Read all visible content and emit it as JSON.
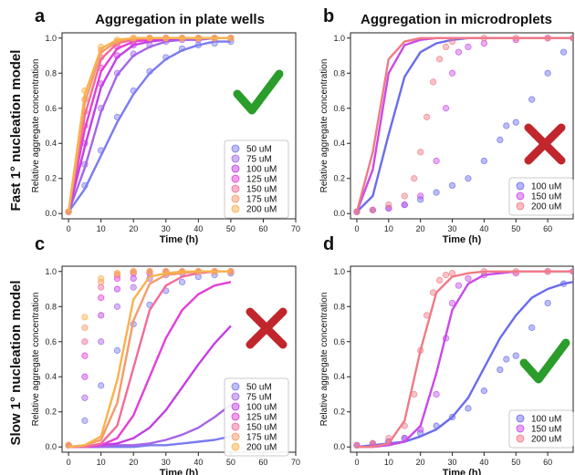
{
  "figure": {
    "column_titles": [
      "Aggregation in plate wells",
      "Aggregation in microdroplets"
    ],
    "row_titles": [
      "Fast 1° nucleation model",
      "Slow 1° nucleation model"
    ]
  },
  "colors": {
    "plate": [
      "#7b7bf0",
      "#a467e6",
      "#c23fe6",
      "#e43fd6",
      "#f26b9a",
      "#f59a6b",
      "#f8b24e"
    ],
    "droplet": [
      "#6b6bee",
      "#c94be8",
      "#f07a86"
    ],
    "check": "#2a9d2a",
    "cross": "#c0262c"
  },
  "chart_data": [
    {
      "type": "scatter",
      "panel_label": "a",
      "title": "Aggregation in plate wells",
      "xlabel": "Time (h)",
      "ylabel": "Relative aggregate concentration",
      "xlim": [
        -2,
        70
      ],
      "ylim": [
        -0.03,
        1.03
      ],
      "xticks": [
        0,
        10,
        20,
        30,
        40,
        50,
        60,
        70
      ],
      "yticks": [
        0.0,
        0.2,
        0.4,
        0.6,
        0.8,
        1.0
      ],
      "legend_position": "bottom-right",
      "verdict": "check",
      "series": [
        {
          "name": "50 uM",
          "data_x": [
            0,
            5,
            10,
            15,
            20,
            25,
            30,
            35,
            40,
            45,
            50
          ],
          "data_y": [
            0.01,
            0.16,
            0.36,
            0.55,
            0.7,
            0.81,
            0.89,
            0.94,
            0.96,
            0.97,
            0.98
          ],
          "fit_y": [
            0.01,
            0.14,
            0.33,
            0.52,
            0.68,
            0.8,
            0.88,
            0.93,
            0.96,
            0.98,
            0.98
          ]
        },
        {
          "name": "75 uM",
          "data_x": [
            0,
            5,
            10,
            15,
            20,
            25,
            30,
            35,
            40,
            45,
            50
          ],
          "data_y": [
            0.01,
            0.28,
            0.6,
            0.8,
            0.91,
            0.96,
            0.98,
            0.99,
            0.99,
            1.0,
            1.0
          ],
          "fit_y": [
            0.01,
            0.26,
            0.58,
            0.79,
            0.9,
            0.95,
            0.98,
            0.99,
            0.99,
            1.0,
            1.0
          ]
        },
        {
          "name": "100 uM",
          "data_x": [
            0,
            5,
            10,
            15,
            20,
            25,
            30,
            35,
            40,
            45,
            50
          ],
          "data_y": [
            0.01,
            0.4,
            0.74,
            0.9,
            0.96,
            0.99,
            1.0,
            1.0,
            1.0,
            1.0,
            1.0
          ],
          "fit_y": [
            0.01,
            0.38,
            0.72,
            0.89,
            0.96,
            0.98,
            0.99,
            1.0,
            1.0,
            1.0,
            1.0
          ]
        },
        {
          "name": "125 uM",
          "data_x": [
            0,
            5,
            10,
            15,
            20,
            25,
            30,
            35,
            40,
            45,
            50
          ],
          "data_y": [
            0.01,
            0.5,
            0.83,
            0.95,
            0.98,
            1.0,
            1.0,
            1.0,
            1.0,
            1.0,
            1.0
          ],
          "fit_y": [
            0.01,
            0.48,
            0.81,
            0.94,
            0.98,
            0.99,
            1.0,
            1.0,
            1.0,
            1.0,
            1.0
          ]
        },
        {
          "name": "150 uM",
          "data_x": [
            0,
            5,
            10,
            15,
            20,
            25,
            30,
            35,
            40,
            45,
            50
          ],
          "data_y": [
            0.01,
            0.58,
            0.89,
            0.97,
            0.99,
            1.0,
            1.0,
            1.0,
            1.0,
            1.0,
            1.0
          ],
          "fit_y": [
            0.01,
            0.56,
            0.88,
            0.97,
            0.99,
            1.0,
            1.0,
            1.0,
            1.0,
            1.0,
            1.0
          ]
        },
        {
          "name": "175 uM",
          "data_x": [
            0,
            5,
            10,
            15,
            20,
            25,
            30,
            35,
            40,
            45,
            50
          ],
          "data_y": [
            0.01,
            0.65,
            0.93,
            0.98,
            1.0,
            1.0,
            1.0,
            1.0,
            1.0,
            1.0,
            1.0
          ],
          "fit_y": [
            0.01,
            0.63,
            0.92,
            0.98,
            1.0,
            1.0,
            1.0,
            1.0,
            1.0,
            1.0,
            1.0
          ]
        },
        {
          "name": "200 uM",
          "data_x": [
            0,
            5,
            10,
            15,
            20,
            25,
            30,
            35,
            40,
            45,
            50
          ],
          "data_y": [
            0.01,
            0.7,
            0.95,
            0.99,
            1.0,
            1.0,
            1.0,
            1.0,
            1.0,
            1.0,
            1.0
          ],
          "fit_y": [
            0.01,
            0.68,
            0.94,
            0.99,
            1.0,
            1.0,
            1.0,
            1.0,
            1.0,
            1.0,
            1.0
          ]
        }
      ]
    },
    {
      "type": "scatter",
      "panel_label": "b",
      "title": "Aggregation in microdroplets",
      "xlabel": "Time (h)",
      "ylabel": "Relative aggregate concentration",
      "xlim": [
        -2,
        68
      ],
      "ylim": [
        -0.03,
        1.03
      ],
      "xticks": [
        0,
        10,
        20,
        30,
        40,
        50,
        60
      ],
      "yticks": [
        0.0,
        0.2,
        0.4,
        0.6,
        0.8,
        1.0
      ],
      "legend_position": "bottom-right",
      "verdict": "cross",
      "series": [
        {
          "name": "100 uM",
          "data_x": [
            0,
            5,
            10,
            15,
            20,
            25,
            30,
            35,
            40,
            45,
            47,
            50,
            55,
            60,
            65,
            68
          ],
          "data_y": [
            0.01,
            0.02,
            0.03,
            0.05,
            0.08,
            0.12,
            0.16,
            0.2,
            0.3,
            0.42,
            0.5,
            0.52,
            0.65,
            0.8,
            0.92,
            1.0
          ],
          "fit_x": [
            0,
            5,
            10,
            15,
            20,
            25,
            30,
            35,
            40,
            45,
            50,
            55,
            60,
            65,
            68
          ],
          "fit_y": [
            0.01,
            0.1,
            0.45,
            0.78,
            0.92,
            0.97,
            0.99,
            1.0,
            1.0,
            1.0,
            1.0,
            1.0,
            1.0,
            1.0,
            1.0
          ]
        },
        {
          "name": "150 uM",
          "data_x": [
            0,
            5,
            10,
            15,
            20,
            25,
            28,
            30,
            32,
            35,
            40,
            50,
            60,
            68
          ],
          "data_y": [
            0.01,
            0.02,
            0.03,
            0.05,
            0.1,
            0.3,
            0.6,
            0.8,
            0.92,
            0.95,
            0.97,
            0.99,
            1.0,
            1.0
          ],
          "fit_x": [
            0,
            5,
            10,
            15,
            20,
            25,
            30,
            35,
            40,
            45,
            50,
            55,
            60,
            65,
            68
          ],
          "fit_y": [
            0.01,
            0.25,
            0.8,
            0.96,
            0.99,
            1.0,
            1.0,
            1.0,
            1.0,
            1.0,
            1.0,
            1.0,
            1.0,
            1.0,
            1.0
          ]
        },
        {
          "name": "200 uM",
          "data_x": [
            0,
            5,
            10,
            15,
            18,
            20,
            22,
            24,
            26,
            28,
            30,
            40,
            50,
            60,
            68
          ],
          "data_y": [
            0.01,
            0.02,
            0.05,
            0.1,
            0.2,
            0.35,
            0.55,
            0.75,
            0.88,
            0.95,
            0.98,
            1.0,
            1.0,
            1.0,
            1.0
          ],
          "fit_x": [
            0,
            5,
            10,
            15,
            20,
            25,
            30,
            35,
            40,
            45,
            50,
            55,
            60,
            65,
            68
          ],
          "fit_y": [
            0.01,
            0.35,
            0.88,
            0.98,
            1.0,
            1.0,
            1.0,
            1.0,
            1.0,
            1.0,
            1.0,
            1.0,
            1.0,
            1.0,
            1.0
          ]
        }
      ]
    },
    {
      "type": "scatter",
      "panel_label": "c",
      "title": "",
      "xlabel": "Time (h)",
      "ylabel": "Relative aggregate concentration",
      "xlim": [
        -2,
        70
      ],
      "ylim": [
        -0.03,
        1.03
      ],
      "xticks": [
        0,
        10,
        20,
        30,
        40,
        50,
        60,
        70
      ],
      "yticks": [
        0.0,
        0.2,
        0.4,
        0.6,
        0.8,
        1.0
      ],
      "legend_position": "bottom-right",
      "verdict": "cross",
      "series": [
        {
          "name": "50 uM",
          "data_x": [
            0,
            5,
            10,
            15,
            20,
            25,
            30,
            35,
            40,
            45,
            50
          ],
          "data_y": [
            0.01,
            0.15,
            0.35,
            0.55,
            0.7,
            0.81,
            0.89,
            0.94,
            0.97,
            0.98,
            0.99
          ],
          "fit_y": [
            0.0,
            0.0,
            0.0,
            0.0,
            0.0,
            0.01,
            0.01,
            0.02,
            0.03,
            0.04,
            0.06
          ]
        },
        {
          "name": "75 uM",
          "data_x": [
            0,
            5,
            10,
            15,
            20,
            25,
            30,
            35,
            40,
            45,
            50
          ],
          "data_y": [
            0.01,
            0.28,
            0.6,
            0.8,
            0.91,
            0.96,
            0.98,
            0.99,
            1.0,
            1.0,
            1.0
          ],
          "fit_y": [
            0.0,
            0.0,
            0.0,
            0.01,
            0.01,
            0.02,
            0.04,
            0.07,
            0.11,
            0.17,
            0.24
          ]
        },
        {
          "name": "100 uM",
          "data_x": [
            0,
            5,
            10,
            15,
            20,
            25,
            30,
            35,
            40,
            45,
            50
          ],
          "data_y": [
            0.01,
            0.4,
            0.75,
            0.9,
            0.96,
            0.99,
            1.0,
            1.0,
            1.0,
            1.0,
            1.0
          ],
          "fit_y": [
            0.0,
            0.0,
            0.01,
            0.02,
            0.05,
            0.11,
            0.21,
            0.34,
            0.47,
            0.59,
            0.69
          ]
        },
        {
          "name": "125 uM",
          "data_x": [
            0,
            5,
            10,
            15,
            20,
            25,
            30,
            35,
            40,
            45,
            50
          ],
          "data_y": [
            0.01,
            0.52,
            0.85,
            0.96,
            0.99,
            1.0,
            1.0,
            1.0,
            1.0,
            1.0,
            1.0
          ],
          "fit_y": [
            0.0,
            0.0,
            0.01,
            0.05,
            0.18,
            0.4,
            0.62,
            0.78,
            0.87,
            0.92,
            0.94
          ]
        },
        {
          "name": "150 uM",
          "data_x": [
            0,
            5,
            10,
            15,
            20,
            25,
            30,
            35,
            40,
            45,
            50
          ],
          "data_y": [
            0.01,
            0.6,
            0.91,
            0.98,
            1.0,
            1.0,
            1.0,
            1.0,
            1.0,
            1.0,
            1.0
          ],
          "fit_y": [
            0.0,
            0.0,
            0.02,
            0.12,
            0.45,
            0.78,
            0.92,
            0.97,
            0.99,
            1.0,
            1.0
          ]
        },
        {
          "name": "175 uM",
          "data_x": [
            0,
            5,
            10,
            15,
            20,
            25,
            30,
            35,
            40,
            45,
            50
          ],
          "data_y": [
            0.01,
            0.68,
            0.94,
            0.99,
            1.0,
            1.0,
            1.0,
            1.0,
            1.0,
            1.0,
            1.0
          ],
          "fit_y": [
            0.0,
            0.01,
            0.04,
            0.25,
            0.72,
            0.93,
            0.98,
            0.99,
            1.0,
            1.0,
            1.0
          ]
        },
        {
          "name": "200 uM",
          "data_x": [
            0,
            5,
            10,
            15,
            20,
            25,
            30,
            35,
            40,
            45,
            50
          ],
          "data_y": [
            0.01,
            0.74,
            0.96,
            0.99,
            1.0,
            1.0,
            1.0,
            1.0,
            1.0,
            1.0,
            1.0
          ],
          "fit_y": [
            0.0,
            0.01,
            0.06,
            0.38,
            0.84,
            0.97,
            0.99,
            1.0,
            1.0,
            1.0,
            1.0
          ]
        }
      ]
    },
    {
      "type": "scatter",
      "panel_label": "d",
      "title": "",
      "xlabel": "Time (h)",
      "ylabel": "Relative aggregate concentration",
      "xlim": [
        -2,
        68
      ],
      "ylim": [
        -0.03,
        1.03
      ],
      "xticks": [
        0,
        10,
        20,
        30,
        40,
        50,
        60
      ],
      "yticks": [
        0.0,
        0.2,
        0.4,
        0.6,
        0.8,
        1.0
      ],
      "legend_position": "bottom-right",
      "verdict": "check",
      "series": [
        {
          "name": "100 uM",
          "data_x": [
            0,
            5,
            10,
            15,
            20,
            25,
            30,
            35,
            40,
            45,
            47,
            50,
            55,
            60,
            65,
            68
          ],
          "data_y": [
            0.01,
            0.02,
            0.03,
            0.05,
            0.08,
            0.12,
            0.17,
            0.22,
            0.32,
            0.44,
            0.5,
            0.52,
            0.68,
            0.82,
            0.93,
            1.0
          ],
          "fit_x": [
            0,
            5,
            10,
            15,
            20,
            25,
            30,
            35,
            40,
            45,
            50,
            55,
            60,
            65,
            68
          ],
          "fit_y": [
            0.0,
            0.01,
            0.02,
            0.03,
            0.06,
            0.1,
            0.17,
            0.28,
            0.45,
            0.62,
            0.75,
            0.85,
            0.9,
            0.93,
            0.94
          ]
        },
        {
          "name": "150 uM",
          "data_x": [
            0,
            5,
            10,
            15,
            20,
            25,
            28,
            30,
            32,
            35,
            40,
            50,
            60,
            68
          ],
          "data_y": [
            0.01,
            0.02,
            0.03,
            0.05,
            0.1,
            0.3,
            0.62,
            0.82,
            0.92,
            0.96,
            0.98,
            0.99,
            1.0,
            1.0
          ],
          "fit_x": [
            0,
            5,
            10,
            15,
            20,
            25,
            30,
            35,
            40,
            45,
            50,
            55,
            60,
            65,
            68
          ],
          "fit_y": [
            0.0,
            0.0,
            0.01,
            0.03,
            0.12,
            0.42,
            0.78,
            0.93,
            0.98,
            0.99,
            1.0,
            1.0,
            1.0,
            1.0,
            1.0
          ]
        },
        {
          "name": "200 uM",
          "data_x": [
            0,
            5,
            10,
            15,
            18,
            20,
            22,
            24,
            26,
            28,
            30,
            40,
            50,
            60,
            68
          ],
          "data_y": [
            0.01,
            0.02,
            0.05,
            0.12,
            0.3,
            0.55,
            0.75,
            0.88,
            0.95,
            0.98,
            0.99,
            1.0,
            1.0,
            1.0,
            1.0
          ],
          "fit_x": [
            0,
            5,
            10,
            15,
            20,
            25,
            30,
            35,
            40,
            45,
            50,
            55,
            60,
            65,
            68
          ],
          "fit_y": [
            0.0,
            0.0,
            0.02,
            0.15,
            0.55,
            0.88,
            0.97,
            0.99,
            1.0,
            1.0,
            1.0,
            1.0,
            1.0,
            1.0,
            1.0
          ]
        }
      ]
    }
  ]
}
